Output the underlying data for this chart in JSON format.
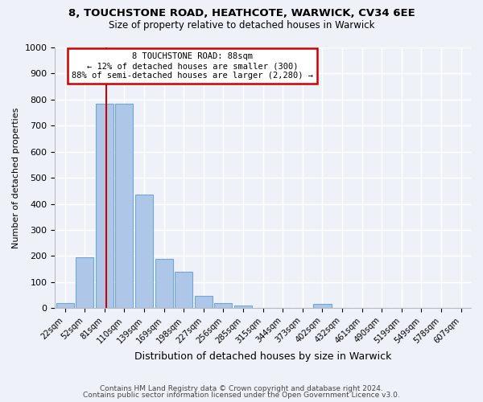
{
  "title1": "8, TOUCHSTONE ROAD, HEATHCOTE, WARWICK, CV34 6EE",
  "title2": "Size of property relative to detached houses in Warwick",
  "xlabel": "Distribution of detached houses by size in Warwick",
  "ylabel": "Number of detached properties",
  "bar_labels": [
    "22sqm",
    "52sqm",
    "81sqm",
    "110sqm",
    "139sqm",
    "169sqm",
    "198sqm",
    "227sqm",
    "256sqm",
    "285sqm",
    "315sqm",
    "344sqm",
    "373sqm",
    "402sqm",
    "432sqm",
    "461sqm",
    "490sqm",
    "519sqm",
    "549sqm",
    "578sqm",
    "607sqm"
  ],
  "bar_values": [
    20,
    195,
    785,
    785,
    435,
    190,
    140,
    48,
    20,
    10,
    0,
    0,
    0,
    15,
    0,
    0,
    0,
    0,
    0,
    0,
    0
  ],
  "bar_color": "#aec6e8",
  "bar_edgecolor": "#6fa8d6",
  "vline_color": "#cc0000",
  "annotation_border_color": "#cc0000",
  "annotation_line1": "8 TOUCHSTONE ROAD: 88sqm",
  "annotation_line2": "← 12% of detached houses are smaller (300)",
  "annotation_line3": "88% of semi-detached houses are larger (2,280) →",
  "ylim": [
    0,
    1000
  ],
  "yticks": [
    0,
    100,
    200,
    300,
    400,
    500,
    600,
    700,
    800,
    900,
    1000
  ],
  "footer1": "Contains HM Land Registry data © Crown copyright and database right 2024.",
  "footer2": "Contains public sector information licensed under the Open Government Licence v3.0.",
  "bg_color": "#eef2f8"
}
